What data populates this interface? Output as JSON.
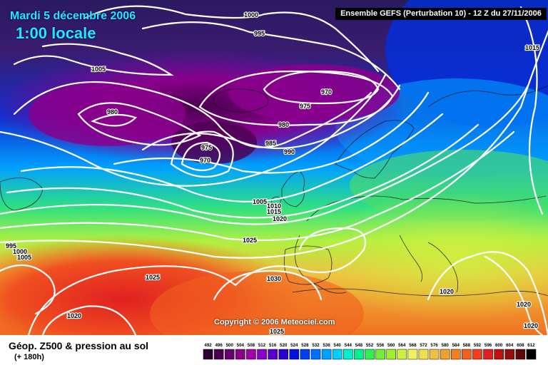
{
  "header": {
    "date": "Mardi 5 décembre 2006",
    "time": "1:00 locale",
    "model": "Ensemble GEFS (Perturbation 10)  -  12 Z du 27/11/2006"
  },
  "copyright": "Copyright © 2006 Meteociel.com",
  "footer": {
    "title": "Géop. Z500 & pression au sol",
    "subtitle": "(+ 180h)"
  },
  "pressure_labels": [
    "1000",
    "995",
    "1005",
    "980",
    "970",
    "975",
    "980",
    "985",
    "990",
    "975",
    "970",
    "1015",
    "1005",
    "1010",
    "1015",
    "1020",
    "1025",
    "995",
    "1000",
    "1005",
    "1025",
    "1030",
    "1020",
    "1025",
    "1020",
    "1020",
    "1020"
  ],
  "scale": {
    "values": [
      "492",
      "496",
      "500",
      "504",
      "508",
      "512",
      "516",
      "520",
      "524",
      "528",
      "532",
      "536",
      "540",
      "544",
      "548",
      "552",
      "556",
      "560",
      "564",
      "568",
      "572",
      "576",
      "580",
      "584",
      "588",
      "592",
      "596",
      "600",
      "604",
      "608",
      "612"
    ],
    "colors": [
      "#2a0030",
      "#4a0050",
      "#6a006e",
      "#8a008c",
      "#a400aa",
      "#8a00c8",
      "#5a00cc",
      "#2a00d0",
      "#0010e0",
      "#0040f0",
      "#0070ff",
      "#00a0ff",
      "#00d0ff",
      "#00f0d0",
      "#00f090",
      "#30f050",
      "#70f030",
      "#a0f030",
      "#d0f040",
      "#f0f060",
      "#f0e050",
      "#f0c040",
      "#f0a030",
      "#f08020",
      "#f06020",
      "#f04020",
      "#e02020",
      "#c01010",
      "#901010",
      "#600808",
      "#000000"
    ]
  }
}
